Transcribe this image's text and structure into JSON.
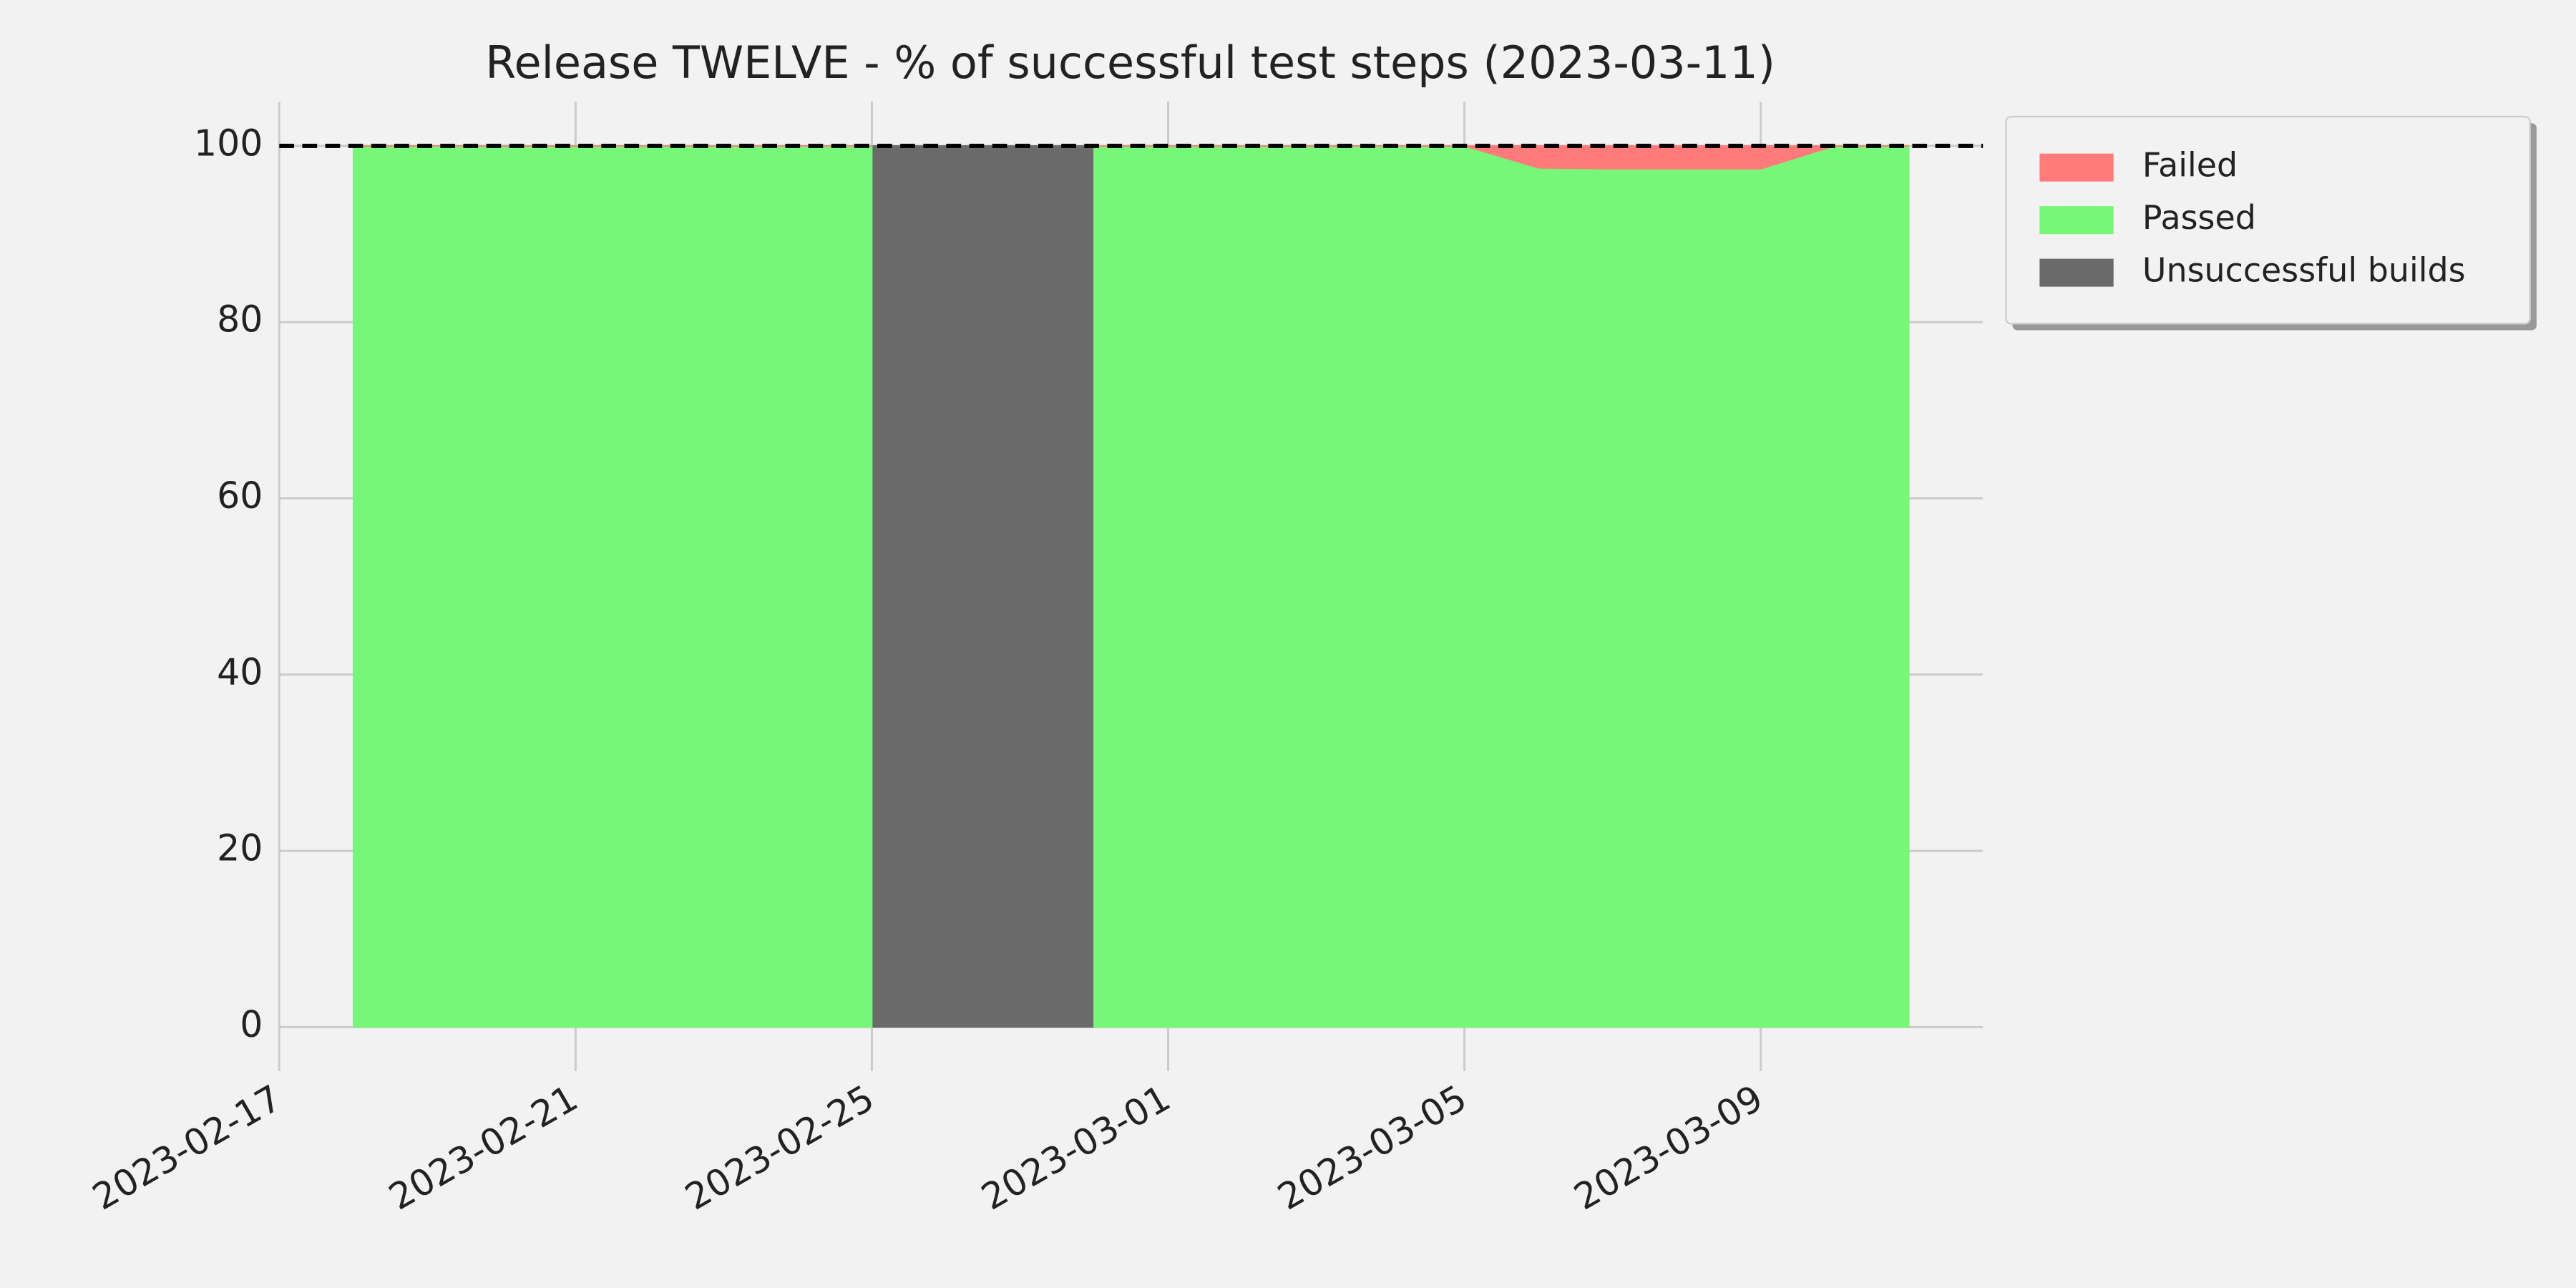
{
  "chart_data": {
    "type": "area",
    "title": "Release TWELVE - % of successful test steps (2023-03-11)",
    "x": [
      "2023-02-18",
      "2023-02-19",
      "2023-02-20",
      "2023-02-21",
      "2023-02-22",
      "2023-02-23",
      "2023-02-24",
      "2023-02-25",
      "2023-02-26",
      "2023-02-27",
      "2023-02-28",
      "2023-03-01",
      "2023-03-02",
      "2023-03-03",
      "2023-03-04",
      "2023-03-05",
      "2023-03-06",
      "2023-03-07",
      "2023-03-08",
      "2023-03-09",
      "2023-03-10",
      "2023-03-11"
    ],
    "series": [
      {
        "name": "Failed",
        "color": "#ff7b7b",
        "stacked": true,
        "values": [
          0,
          0,
          0,
          0,
          0,
          0,
          0,
          0,
          null,
          null,
          0,
          0,
          0,
          0,
          0,
          0,
          2.5,
          2.6,
          2.6,
          2.6,
          0,
          0
        ]
      },
      {
        "name": "Passed",
        "color": "#77f777",
        "stacked": true,
        "values": [
          100,
          100,
          100,
          100,
          100,
          100,
          100,
          100,
          null,
          null,
          100,
          100,
          100,
          100,
          100,
          100,
          97.5,
          97.4,
          97.4,
          97.4,
          100,
          100
        ]
      },
      {
        "name": "Unsuccessful builds",
        "color": "#6a6a6a",
        "stacked": false,
        "values": [
          null,
          null,
          null,
          null,
          null,
          null,
          null,
          100,
          100,
          100,
          100,
          null,
          null,
          null,
          null,
          null,
          null,
          null,
          null,
          null,
          null,
          null
        ]
      }
    ],
    "hline": 100,
    "xlim": [
      "2023-02-17",
      "2023-03-12"
    ],
    "xticks": [
      "2023-02-17",
      "2023-02-21",
      "2023-02-25",
      "2023-03-01",
      "2023-03-05",
      "2023-03-09"
    ],
    "ylim": [
      -5,
      105
    ],
    "yticks": [
      0,
      20,
      40,
      60,
      80,
      100
    ],
    "grid": true,
    "legend": "outside upper right"
  }
}
